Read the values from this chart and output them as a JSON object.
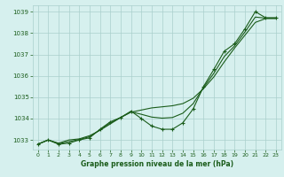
{
  "xlabel": "Graphe pression niveau de la mer (hPa)",
  "x_hours": [
    0,
    1,
    2,
    3,
    4,
    5,
    6,
    7,
    8,
    9,
    10,
    11,
    12,
    13,
    14,
    15,
    16,
    17,
    18,
    19,
    20,
    21,
    22,
    23
  ],
  "line_smooth": [
    1032.8,
    1033.0,
    1032.85,
    1033.0,
    1033.05,
    1033.2,
    1033.45,
    1033.75,
    1034.05,
    1034.3,
    1034.4,
    1034.5,
    1034.55,
    1034.6,
    1034.7,
    1034.95,
    1035.4,
    1035.95,
    1036.65,
    1037.3,
    1037.9,
    1038.5,
    1038.68,
    1038.68
  ],
  "line_wavy": [
    1032.8,
    1033.0,
    1032.8,
    1032.85,
    1033.0,
    1033.1,
    1033.5,
    1033.85,
    1034.05,
    1034.35,
    1034.0,
    1033.65,
    1033.5,
    1033.5,
    1033.8,
    1034.45,
    1035.5,
    1036.3,
    1037.15,
    1037.5,
    1038.2,
    1039.0,
    1038.72,
    1038.72
  ],
  "line_mid": [
    1032.8,
    1033.0,
    1032.82,
    1032.92,
    1033.02,
    1033.15,
    1033.47,
    1033.8,
    1034.05,
    1034.32,
    1034.2,
    1034.07,
    1034.02,
    1034.05,
    1034.25,
    1034.7,
    1035.45,
    1036.12,
    1036.9,
    1037.4,
    1038.05,
    1038.75,
    1038.7,
    1038.7
  ],
  "line_color": "#1a5c1a",
  "marker": "+",
  "marker_size": 3,
  "marker_lw": 0.8,
  "line_width": 0.8,
  "bg_color": "#d6f0ee",
  "grid_color": "#aacfcc",
  "text_color": "#1a5c1a",
  "ylim_min": 1032.55,
  "ylim_max": 1039.3,
  "yticks": [
    1033,
    1034,
    1035,
    1036,
    1037,
    1038,
    1039
  ],
  "xticks": [
    0,
    1,
    2,
    3,
    4,
    5,
    6,
    7,
    8,
    9,
    10,
    11,
    12,
    13,
    14,
    15,
    16,
    17,
    18,
    19,
    20,
    21,
    22,
    23
  ]
}
